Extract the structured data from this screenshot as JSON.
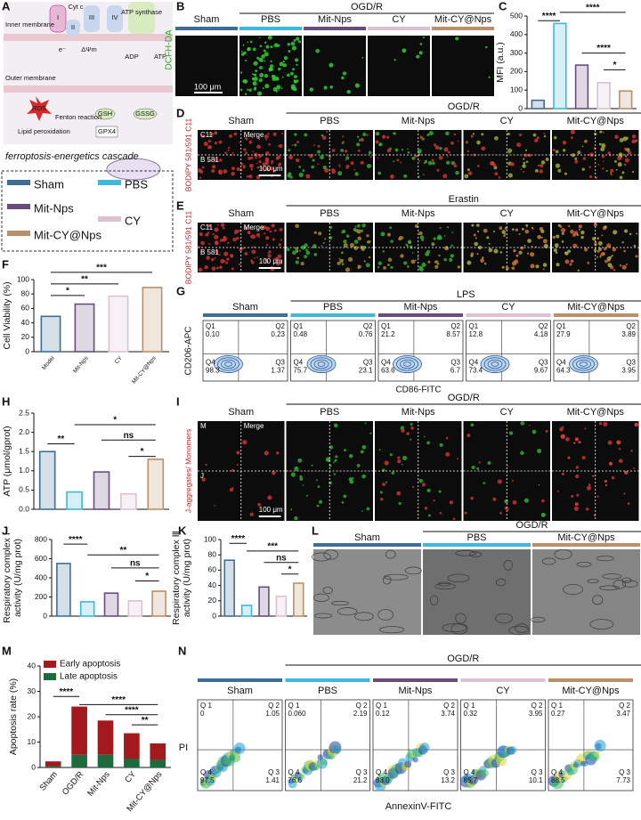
{
  "panel_letters": [
    "A",
    "B",
    "C",
    "D",
    "E",
    "F",
    "G",
    "H",
    "I",
    "J",
    "K",
    "L",
    "M",
    "N"
  ],
  "schematic": {
    "labels": [
      "Inner membrane",
      "Outer membrane",
      "ROS",
      "Fenton reaction",
      "GSH",
      "GSSG",
      "Lipid peroxidation",
      "GPX4",
      "ADP",
      "ATP",
      "ATP synthase",
      "I",
      "II",
      "III",
      "IV",
      "Cyt c",
      "e⁻",
      "ΔΨm"
    ],
    "caption": "ferroptosis-energetics cascade"
  },
  "groups": [
    "Sham",
    "PBS",
    "Mit-Nps",
    "CY",
    "Mit-CY@Nps"
  ],
  "group_colors": [
    "#3d6f96",
    "#3fb8dc",
    "#6a4c7c",
    "#dcc1d0",
    "#b8916a"
  ],
  "panel_B": {
    "condition": "OGD/R",
    "stain": "DCFH-DA",
    "scale": "100 μm"
  },
  "panel_D": {
    "condition": "OGD/R",
    "stain": "BODIPY 581/591 C11",
    "channels": [
      "C11",
      "B 581"
    ],
    "merge": "Merge",
    "scale": "100 μm"
  },
  "panel_E": {
    "condition": "Erastin",
    "stain": "BODIPY 581/591 C11",
    "channels": [
      "C11",
      "B 581"
    ],
    "merge": "Merge",
    "scale": "100 μm"
  },
  "panel_I": {
    "condition": "OGD/R",
    "stain": "J-aggregates/ Monomers",
    "channels": [
      "M",
      "J"
    ],
    "merge": "Merge",
    "scale": "100 μm"
  },
  "panel_L": {
    "condition": "OGD/R",
    "groups": [
      "Sham",
      "PBS",
      "Mit-CY@Nps"
    ]
  },
  "panel_G": {
    "condition": "LPS",
    "y_label": "CD206-APC",
    "x_label": "CD86-FITC",
    "quadrant_names": [
      "Q1",
      "Q2",
      "Q4",
      "Q3"
    ],
    "quadrants": [
      [
        "0.10",
        "0.23",
        "98.3",
        "1.37"
      ],
      [
        "0.48",
        "0.76",
        "75.7",
        "23.1"
      ],
      [
        "21.2",
        "8.57",
        "63.6",
        "6.7"
      ],
      [
        "12.8",
        "4.18",
        "73.4",
        "9.67"
      ],
      [
        "27.9",
        "3.89",
        "64.3",
        "3.95"
      ]
    ]
  },
  "panel_N": {
    "condition": "OGD/R",
    "y_label": "PI",
    "x_label": "AnnexinV-FITC",
    "quadrant_names": [
      "Q 1",
      "Q 2",
      "Q 4",
      "Q 3"
    ],
    "quadrants": [
      [
        "0",
        "1.05",
        "97.5",
        "1.41"
      ],
      [
        "0.060",
        "2.19",
        "76.6",
        "21.2"
      ],
      [
        "0.12",
        "3.74",
        "83.0",
        "13.2"
      ],
      [
        "0.32",
        "3.95",
        "85.7",
        "10.1"
      ],
      [
        "0.27",
        "3.47",
        "88.5",
        "7.73"
      ]
    ]
  },
  "chart_data": [
    {
      "type": "bar",
      "y_label": "MFI (a.u.)",
      "values": [
        45,
        460,
        235,
        140,
        95
      ],
      "colors": [
        "#3d6f96",
        "#3fb8dc",
        "#6a4c7c",
        "#dcc1d0",
        "#b8916a"
      ],
      "ylim": [
        0,
        500
      ],
      "yticks": [
        0,
        100,
        200,
        300,
        400,
        500
      ],
      "annotations": [
        "****",
        "****",
        "****",
        "*"
      ]
    },
    {
      "type": "bar",
      "y_label": "Cell Viability (%)",
      "categories": [
        "Model",
        "Mit-Nps",
        "CY",
        "Mit-CY@Nps"
      ],
      "values": [
        49,
        66,
        77,
        89
      ],
      "colors": [
        "#3d6f96",
        "#6a4c7c",
        "#dcc1d0",
        "#b8916a"
      ],
      "ylim": [
        0,
        100
      ],
      "yticks": [
        0,
        20,
        40,
        60,
        80,
        100
      ],
      "annotations": [
        "***",
        "**",
        "*"
      ]
    },
    {
      "type": "bar",
      "y_label": "ATP (μmol/gprot)",
      "values": [
        1.5,
        0.45,
        0.97,
        0.4,
        1.3
      ],
      "colors": [
        "#3d6f96",
        "#3fb8dc",
        "#6a4c7c",
        "#dcc1d0",
        "#b8916a"
      ],
      "ylim": [
        0,
        2.5
      ],
      "yticks": [
        {
          "value": 0,
          "label": "0.0"
        },
        0.5,
        {
          "value": 1,
          "label": "1.0"
        },
        1.5,
        {
          "value": 2,
          "label": "2.0"
        },
        2.5
      ],
      "annotations": [
        "**",
        "*",
        "ns",
        "*"
      ]
    },
    {
      "type": "bar",
      "y_label": [
        "Respiratory complex Ⅰ",
        "activity (U/mg prot)"
      ],
      "values": [
        550,
        150,
        240,
        160,
        260
      ],
      "colors": [
        "#3d6f96",
        "#3fb8dc",
        "#6a4c7c",
        "#dcc1d0",
        "#b8916a"
      ],
      "ylim": [
        0,
        800
      ],
      "yticks": [
        0,
        200,
        400,
        600,
        800
      ],
      "annotations": [
        "****",
        "**",
        "ns",
        "*"
      ]
    },
    {
      "type": "bar",
      "y_label": [
        "Respiratory complex Ⅲ",
        "activity (U/mg prot)"
      ],
      "values": [
        73,
        14,
        38,
        26,
        43
      ],
      "colors": [
        "#3d6f96",
        "#3fb8dc",
        "#6a4c7c",
        "#dcc1d0",
        "#b8916a"
      ],
      "ylim": [
        0,
        100
      ],
      "yticks": [
        0,
        20,
        40,
        60,
        80,
        100
      ],
      "annotations": [
        "****",
        "***",
        "ns",
        "*"
      ]
    },
    {
      "type": "stacked_bar",
      "y_label": "Apoptosis rate (%)",
      "categories": [
        "Sham",
        "OGD/R",
        "Mit-Nps",
        "CY",
        "Mit-CY@Nps"
      ],
      "series": [
        {
          "name": "Early apoptosis",
          "color": "#a3191e",
          "values": [
            1.9,
            19,
            13.5,
            10,
            6.5
          ]
        },
        {
          "name": "Late apoptosis",
          "color": "#1c6b3d",
          "values": [
            0.5,
            5,
            5,
            3.5,
            3
          ]
        }
      ],
      "ylim": [
        0,
        40
      ],
      "yticks": [
        0,
        10,
        20,
        30,
        40
      ],
      "annotations": [
        "****",
        "****",
        "****",
        "**"
      ]
    }
  ]
}
